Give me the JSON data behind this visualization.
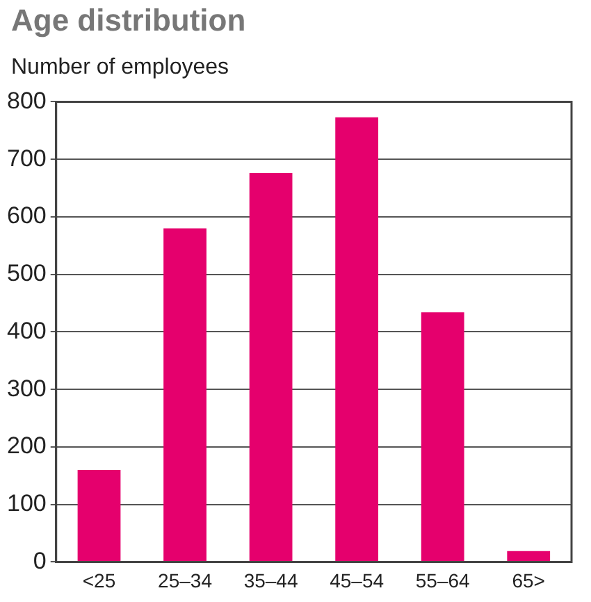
{
  "chart_data": {
    "type": "bar",
    "title": "Age distribution",
    "ylabel": "Number of employees",
    "categories": [
      "<25",
      "25–34",
      "35–44",
      "45–54",
      "55–64",
      "65>"
    ],
    "values": [
      160,
      580,
      676,
      773,
      434,
      19
    ],
    "color": "#e5006d",
    "ylim": [
      0,
      800
    ],
    "yticks": [
      0,
      100,
      200,
      300,
      400,
      500,
      600,
      700,
      800
    ],
    "grid": "y"
  }
}
